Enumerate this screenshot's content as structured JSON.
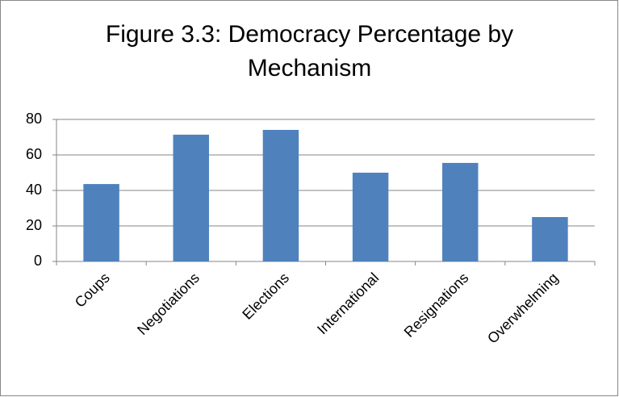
{
  "chart_data": {
    "type": "bar",
    "title": "Figure 3.3: Democracy Percentage by Mechanism",
    "categories": [
      "Coups",
      "Negotiations",
      "Elections",
      "International",
      "Resignations",
      "Overwhelming"
    ],
    "values": [
      43.6,
      71.4,
      74.1,
      50,
      55.5,
      25
    ],
    "color": "#4f81bd",
    "ylim": [
      0,
      80
    ],
    "yticks": [
      0,
      20,
      40,
      60,
      80
    ],
    "grid": true
  }
}
